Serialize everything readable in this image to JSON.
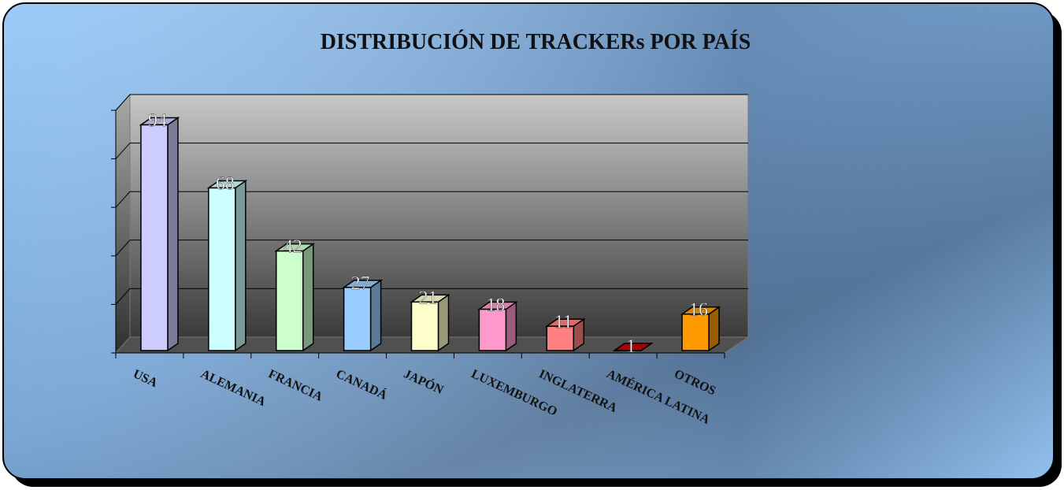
{
  "chart_data": {
    "type": "bar3d",
    "title": "DISTRIBUCIÓN DE TRACKERs POR PAÍS",
    "categories": [
      "USA",
      "ALEMANIA",
      "FRANCIA",
      "CANADÁ",
      "JAPÓN",
      "LUXEMBURGO",
      "INGLATERRA",
      "AMÉRICA LATINA",
      "OTROS"
    ],
    "values": [
      94,
      68,
      42,
      27,
      21,
      18,
      11,
      1,
      16
    ],
    "colors": [
      "#ccccff",
      "#ccffff",
      "#ccffcc",
      "#99ccff",
      "#ffffcc",
      "#ff99cc",
      "#ff8080",
      "#cc0000",
      "#ff9900"
    ],
    "ylim": [
      0,
      100
    ],
    "yticks": [
      0,
      20,
      40,
      60,
      80,
      100
    ],
    "grid": true
  }
}
